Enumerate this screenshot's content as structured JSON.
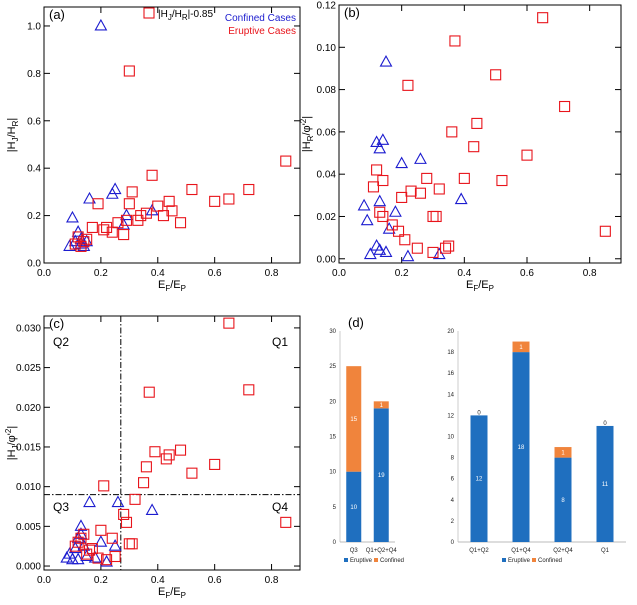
{
  "colors": {
    "eruptive": "#e8141b",
    "confined": "#1c1ccf",
    "bar_eruptive": "#1f6fbf",
    "bar_confined": "#f0843c"
  },
  "chart_data": [
    {
      "id": "a",
      "type": "scatter",
      "panel_label": "(a)",
      "xlabel": "E_F/E_P",
      "ylabel": "|H_J/H_R|",
      "xlim": [
        0,
        0.9
      ],
      "ylim": [
        0,
        1.08
      ],
      "xticks": [
        "0.0",
        "0.2",
        "0.4",
        "0.6",
        "0.8"
      ],
      "yticks": [
        "0.0",
        "0.2",
        "0.4",
        "0.6",
        "0.8",
        "1.0"
      ],
      "legend": {
        "box_label": "|H_J/H_R|-0.85",
        "confined": "Confined Cases",
        "eruptive": "Eruptive Cases"
      },
      "series": [
        {
          "name": "Confined Cases",
          "marker": "triangle",
          "points": [
            [
              0.2,
              1.0
            ],
            [
              0.09,
              0.07
            ],
            [
              0.1,
              0.19
            ],
            [
              0.11,
              0.09
            ],
            [
              0.12,
              0.13
            ],
            [
              0.13,
              0.1
            ],
            [
              0.14,
              0.07
            ],
            [
              0.15,
              0.09
            ],
            [
              0.16,
              0.27
            ],
            [
              0.24,
              0.29
            ],
            [
              0.25,
              0.31
            ],
            [
              0.28,
              0.16
            ],
            [
              0.29,
              0.2
            ],
            [
              0.38,
              0.22
            ],
            [
              0.13,
              0.08
            ]
          ]
        },
        {
          "name": "Eruptive Cases",
          "marker": "square",
          "points": [
            [
              0.3,
              0.81
            ],
            [
              0.11,
              0.08
            ],
            [
              0.12,
              0.11
            ],
            [
              0.13,
              0.07
            ],
            [
              0.14,
              0.09
            ],
            [
              0.15,
              0.1
            ],
            [
              0.17,
              0.15
            ],
            [
              0.19,
              0.25
            ],
            [
              0.21,
              0.14
            ],
            [
              0.22,
              0.15
            ],
            [
              0.24,
              0.13
            ],
            [
              0.26,
              0.17
            ],
            [
              0.28,
              0.12
            ],
            [
              0.29,
              0.18
            ],
            [
              0.3,
              0.25
            ],
            [
              0.31,
              0.3
            ],
            [
              0.33,
              0.18
            ],
            [
              0.36,
              0.21
            ],
            [
              0.38,
              0.37
            ],
            [
              0.4,
              0.24
            ],
            [
              0.42,
              0.2
            ],
            [
              0.45,
              0.22
            ],
            [
              0.48,
              0.17
            ],
            [
              0.52,
              0.31
            ],
            [
              0.6,
              0.26
            ],
            [
              0.65,
              0.27
            ],
            [
              0.72,
              0.31
            ],
            [
              0.85,
              0.43
            ],
            [
              0.44,
              0.26
            ],
            [
              0.34,
              0.2
            ]
          ]
        }
      ]
    },
    {
      "id": "b",
      "type": "scatter",
      "panel_label": "(b)",
      "xlabel": "E_F/E_P",
      "ylabel": "|H_R/φ'^2|",
      "xlim": [
        0,
        0.9
      ],
      "ylim": [
        -0.002,
        0.12
      ],
      "xticks": [
        "0.0",
        "0.2",
        "0.4",
        "0.6",
        "0.8"
      ],
      "yticks": [
        "0.00",
        "0.02",
        "0.04",
        "0.06",
        "0.08",
        "0.10",
        "0.12"
      ],
      "series": [
        {
          "name": "Confined Cases",
          "marker": "triangle",
          "points": [
            [
              0.08,
              0.025
            ],
            [
              0.09,
              0.018
            ],
            [
              0.1,
              0.002
            ],
            [
              0.12,
              0.006
            ],
            [
              0.12,
              0.055
            ],
            [
              0.13,
              0.052
            ],
            [
              0.14,
              0.056
            ],
            [
              0.13,
              0.027
            ],
            [
              0.15,
              0.093
            ],
            [
              0.16,
              0.014
            ],
            [
              0.18,
              0.022
            ],
            [
              0.2,
              0.045
            ],
            [
              0.22,
              0.001
            ],
            [
              0.26,
              0.047
            ],
            [
              0.32,
              0.002
            ],
            [
              0.39,
              0.028
            ],
            [
              0.13,
              0.004
            ],
            [
              0.15,
              0.003
            ]
          ]
        },
        {
          "name": "Eruptive Cases",
          "marker": "square",
          "points": [
            [
              0.11,
              0.034
            ],
            [
              0.12,
              0.042
            ],
            [
              0.13,
              0.022
            ],
            [
              0.14,
              0.037
            ],
            [
              0.14,
              0.02
            ],
            [
              0.17,
              0.016
            ],
            [
              0.19,
              0.013
            ],
            [
              0.2,
              0.029
            ],
            [
              0.21,
              0.009
            ],
            [
              0.22,
              0.082
            ],
            [
              0.23,
              0.032
            ],
            [
              0.25,
              0.005
            ],
            [
              0.26,
              0.031
            ],
            [
              0.28,
              0.038
            ],
            [
              0.3,
              0.02
            ],
            [
              0.31,
              0.02
            ],
            [
              0.32,
              0.033
            ],
            [
              0.34,
              0.005
            ],
            [
              0.35,
              0.006
            ],
            [
              0.36,
              0.06
            ],
            [
              0.37,
              0.103
            ],
            [
              0.4,
              0.038
            ],
            [
              0.43,
              0.053
            ],
            [
              0.44,
              0.064
            ],
            [
              0.5,
              0.087
            ],
            [
              0.52,
              0.037
            ],
            [
              0.6,
              0.049
            ],
            [
              0.65,
              0.114
            ],
            [
              0.72,
              0.072
            ],
            [
              0.85,
              0.013
            ],
            [
              0.3,
              0.003
            ]
          ]
        }
      ]
    },
    {
      "id": "c",
      "type": "scatter",
      "panel_label": "(c)",
      "xlabel": "E_F/E_P",
      "ylabel": "|H_J/φ'^2|",
      "xlim": [
        0,
        0.9
      ],
      "ylim": [
        -0.0005,
        0.0315
      ],
      "xticks": [
        "0.0",
        "0.2",
        "0.4",
        "0.6",
        "0.8"
      ],
      "yticks": [
        "0.000",
        "0.005",
        "0.010",
        "0.015",
        "0.020",
        "0.025",
        "0.030"
      ],
      "threshold_x": 0.27,
      "threshold_y": 0.009,
      "quadrants": [
        "Q1",
        "Q2",
        "Q3",
        "Q4"
      ],
      "series": [
        {
          "name": "Confined Cases",
          "marker": "triangle",
          "points": [
            [
              0.08,
              0.001
            ],
            [
              0.09,
              0.0015
            ],
            [
              0.1,
              0.0008
            ],
            [
              0.11,
              0.0022
            ],
            [
              0.12,
              0.0035
            ],
            [
              0.13,
              0.004
            ],
            [
              0.13,
              0.005
            ],
            [
              0.14,
              0.0025
            ],
            [
              0.15,
              0.0012
            ],
            [
              0.16,
              0.008
            ],
            [
              0.18,
              0.001
            ],
            [
              0.2,
              0.003
            ],
            [
              0.22,
              0.0005
            ],
            [
              0.25,
              0.0025
            ],
            [
              0.26,
              0.008
            ],
            [
              0.38,
              0.007
            ],
            [
              0.12,
              0.0008
            ]
          ]
        },
        {
          "name": "Eruptive Cases",
          "marker": "square",
          "points": [
            [
              0.11,
              0.0025
            ],
            [
              0.12,
              0.003
            ],
            [
              0.13,
              0.0035
            ],
            [
              0.14,
              0.004
            ],
            [
              0.15,
              0.0015
            ],
            [
              0.16,
              0.002
            ],
            [
              0.17,
              0.0022
            ],
            [
              0.19,
              0.001
            ],
            [
              0.2,
              0.0045
            ],
            [
              0.21,
              0.0101
            ],
            [
              0.22,
              0.0008
            ],
            [
              0.24,
              0.0035
            ],
            [
              0.25,
              0.0012
            ],
            [
              0.28,
              0.0065
            ],
            [
              0.29,
              0.0055
            ],
            [
              0.3,
              0.0028
            ],
            [
              0.31,
              0.0028
            ],
            [
              0.32,
              0.0084
            ],
            [
              0.35,
              0.0105
            ],
            [
              0.36,
              0.0125
            ],
            [
              0.37,
              0.0219
            ],
            [
              0.39,
              0.0144
            ],
            [
              0.43,
              0.0135
            ],
            [
              0.44,
              0.014
            ],
            [
              0.48,
              0.0146
            ],
            [
              0.52,
              0.0117
            ],
            [
              0.6,
              0.0128
            ],
            [
              0.65,
              0.0306
            ],
            [
              0.72,
              0.0222
            ],
            [
              0.85,
              0.0055
            ]
          ]
        }
      ]
    },
    {
      "id": "d1",
      "type": "bar",
      "panel_label": "(d)",
      "categories": [
        "Q3",
        "Q1+Q2+Q4"
      ],
      "series": [
        {
          "name": "Eruptive",
          "values": [
            10,
            19
          ]
        },
        {
          "name": "Confined",
          "values": [
            15,
            1
          ]
        }
      ],
      "ylim": [
        0,
        30
      ],
      "yticks": [
        "0",
        "5",
        "10",
        "15",
        "20",
        "25",
        "30"
      ],
      "legend": [
        "Eruptive",
        "Confined"
      ]
    },
    {
      "id": "d2",
      "type": "bar",
      "categories": [
        "Q1+Q2",
        "Q1+Q4",
        "Q2+Q4",
        "Q1"
      ],
      "series": [
        {
          "name": "Eruptive",
          "values": [
            12,
            18,
            8,
            11
          ]
        },
        {
          "name": "Confined",
          "values": [
            0,
            1,
            1,
            0
          ]
        }
      ],
      "ylim": [
        0,
        20
      ],
      "yticks": [
        "0",
        "2",
        "4",
        "6",
        "8",
        "10",
        "12",
        "14",
        "16",
        "18",
        "20"
      ],
      "legend": [
        "Eruptive",
        "Confined"
      ]
    }
  ]
}
